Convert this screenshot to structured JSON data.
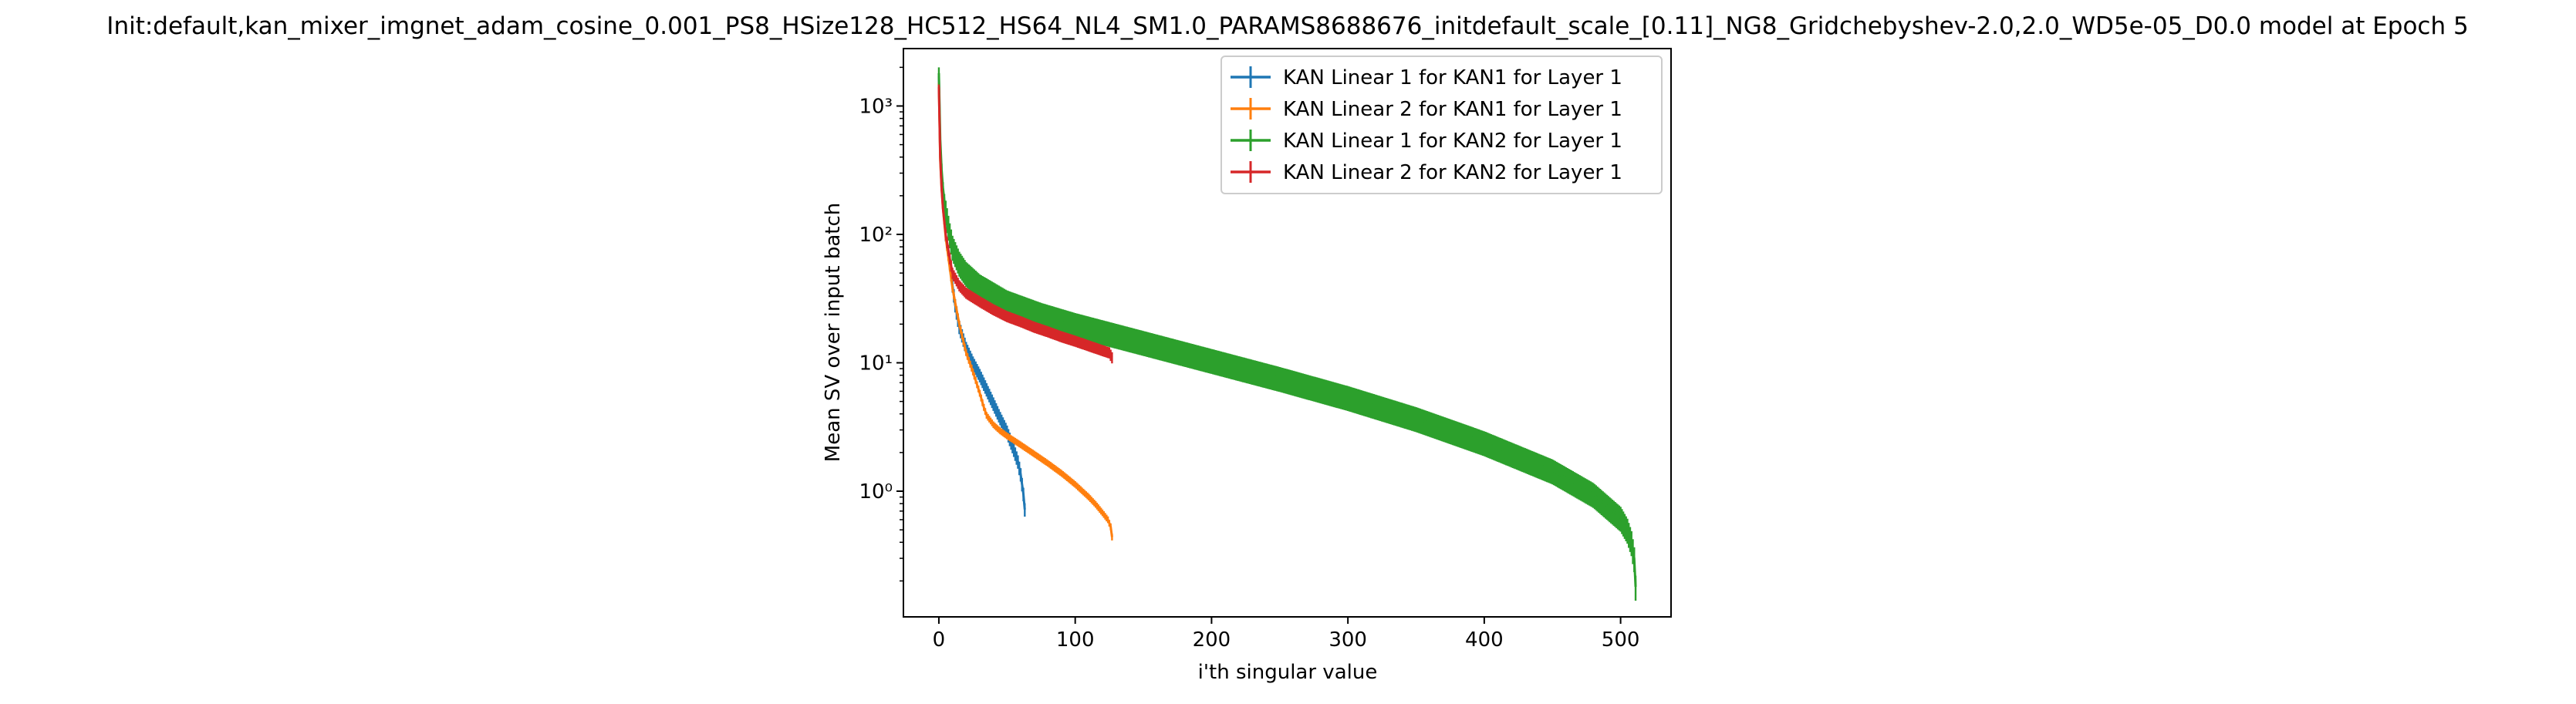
{
  "chart_data": {
    "type": "line",
    "title": "Init:default,kan_mixer_imgnet_adam_cosine_0.001_PS8_HSize128_HC512_HS64_NL4_SM1.0_PARAMS8688676_initdefault_scale_[0.11]_NG8_Gridchebyshev-2.0,2.0_WD5e-05_D0.0 model at Epoch 5",
    "xlabel": "i'th singular value",
    "ylabel": "Mean SV over input batch",
    "xlim": [
      -26,
      537
    ],
    "ylim": [
      0.105,
      2800
    ],
    "yscale": "log",
    "grid": false,
    "legend_position": "top-right",
    "x_ticks": [
      0,
      100,
      200,
      300,
      400,
      500
    ],
    "x_tick_labels": [
      "0",
      "100",
      "200",
      "300",
      "400",
      "500"
    ],
    "y_ticks": [
      1,
      10,
      100,
      1000
    ],
    "y_tick_labels": [
      "10⁰",
      "10¹",
      "10²",
      "10³"
    ],
    "series": [
      {
        "name": "KAN Linear 1 for KAN1 for Layer 1",
        "color": "#1f77b4",
        "n": 64,
        "points": [
          [
            0,
            1700
          ],
          [
            1,
            420
          ],
          [
            2,
            250
          ],
          [
            3,
            170
          ],
          [
            5,
            100
          ],
          [
            8,
            60
          ],
          [
            10,
            40
          ],
          [
            12,
            28
          ],
          [
            15,
            19
          ],
          [
            20,
            13
          ],
          [
            25,
            10
          ],
          [
            30,
            8
          ],
          [
            35,
            6.2
          ],
          [
            40,
            4.8
          ],
          [
            45,
            3.7
          ],
          [
            50,
            2.9
          ],
          [
            55,
            2.1
          ],
          [
            58,
            1.7
          ],
          [
            60,
            1.35
          ],
          [
            62,
            0.95
          ],
          [
            63,
            0.72
          ]
        ],
        "err_rel": 0.12
      },
      {
        "name": "KAN Linear 2 for KAN1 for Layer 1",
        "color": "#ff7f0e",
        "n": 128,
        "points": [
          [
            0,
            1500
          ],
          [
            1,
            380
          ],
          [
            2,
            230
          ],
          [
            3,
            160
          ],
          [
            5,
            95
          ],
          [
            8,
            55
          ],
          [
            10,
            38
          ],
          [
            15,
            20
          ],
          [
            20,
            12
          ],
          [
            25,
            8.5
          ],
          [
            30,
            5.8
          ],
          [
            33,
            4.5
          ],
          [
            35,
            3.9
          ],
          [
            40,
            3.3
          ],
          [
            45,
            2.95
          ],
          [
            50,
            2.7
          ],
          [
            60,
            2.3
          ],
          [
            70,
            1.95
          ],
          [
            80,
            1.65
          ],
          [
            90,
            1.38
          ],
          [
            100,
            1.13
          ],
          [
            110,
            0.9
          ],
          [
            115,
            0.79
          ],
          [
            120,
            0.68
          ],
          [
            124,
            0.6
          ],
          [
            126,
            0.53
          ],
          [
            127,
            0.44
          ]
        ],
        "err_rel": 0.06
      },
      {
        "name": "KAN Linear 1 for KAN2 for Layer 1",
        "color": "#2ca02c",
        "n": 512,
        "points": [
          [
            0,
            1800
          ],
          [
            1,
            550
          ],
          [
            2,
            320
          ],
          [
            3,
            230
          ],
          [
            5,
            150
          ],
          [
            8,
            100
          ],
          [
            10,
            80
          ],
          [
            15,
            60
          ],
          [
            20,
            50
          ],
          [
            30,
            40
          ],
          [
            50,
            30
          ],
          [
            75,
            24
          ],
          [
            100,
            20
          ],
          [
            150,
            14.5
          ],
          [
            200,
            10.5
          ],
          [
            250,
            7.6
          ],
          [
            300,
            5.4
          ],
          [
            350,
            3.7
          ],
          [
            400,
            2.4
          ],
          [
            450,
            1.45
          ],
          [
            480,
            0.95
          ],
          [
            500,
            0.62
          ],
          [
            505,
            0.5
          ],
          [
            508,
            0.4
          ],
          [
            510,
            0.3
          ],
          [
            511,
            0.18
          ]
        ],
        "err_rel": 0.22
      },
      {
        "name": "KAN Linear 2 for KAN2 for Layer 1",
        "color": "#d62728",
        "n": 128,
        "points": [
          [
            0,
            1400
          ],
          [
            1,
            400
          ],
          [
            2,
            230
          ],
          [
            3,
            160
          ],
          [
            5,
            100
          ],
          [
            8,
            65
          ],
          [
            10,
            50
          ],
          [
            15,
            40
          ],
          [
            20,
            35
          ],
          [
            30,
            30
          ],
          [
            40,
            26
          ],
          [
            50,
            23
          ],
          [
            60,
            21
          ],
          [
            70,
            19
          ],
          [
            80,
            17.5
          ],
          [
            90,
            16
          ],
          [
            100,
            14.8
          ],
          [
            110,
            13.6
          ],
          [
            120,
            12.5
          ],
          [
            125,
            12
          ],
          [
            127,
            11
          ]
        ],
        "err_rel": 0.1
      }
    ]
  }
}
